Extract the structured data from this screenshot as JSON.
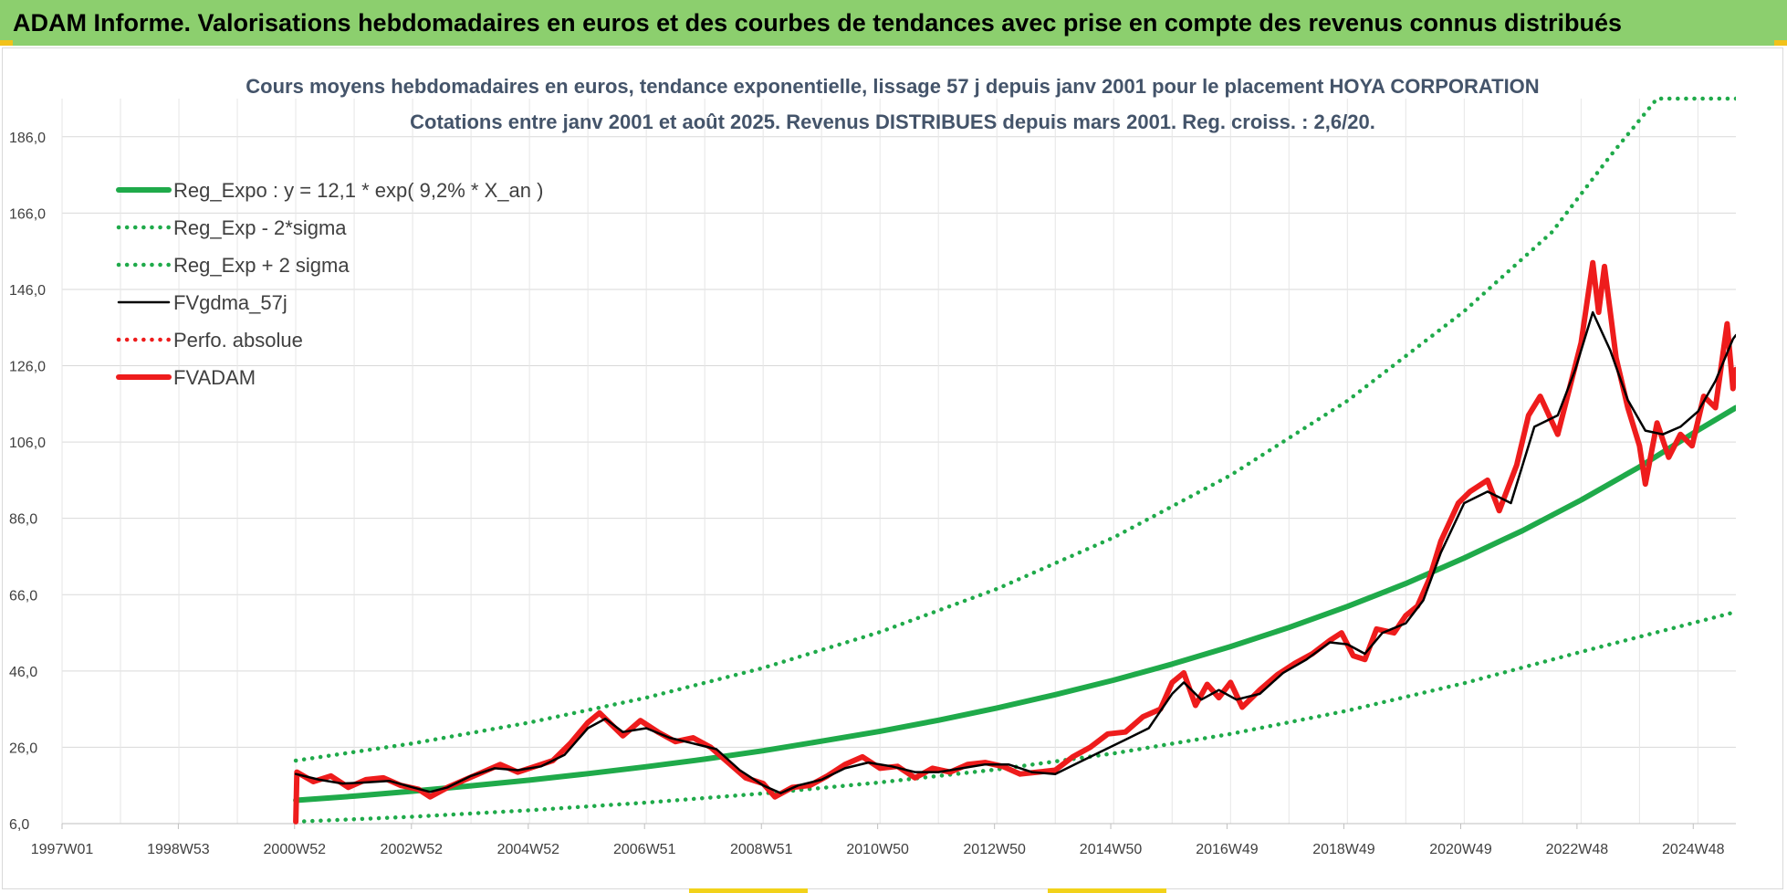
{
  "header": {
    "title": "ADAM Informe. Valorisations hebdomadaires en euros et des courbes de tendances avec prise en compte des revenus connus distribués"
  },
  "colors": {
    "banner": "#8ccf6e",
    "reg_expo": "#1faa4a",
    "fvgdma": "#000000",
    "fvadam": "#ee1c1c",
    "perfo": "#ee1c1c",
    "title_text": "#44546a"
  },
  "chart_data": {
    "type": "line",
    "title": "Cours moyens hebdomadaires en euros, tendance exponentielle, lissage 57 j depuis janv 2001 pour le placement HOYA CORPORATION",
    "subtitle": "Cotations entre janv 2001 et août 2025. Revenus DISTRIBUES depuis mars 2001. Reg. croiss. : 2,6/20.",
    "xlabel": "",
    "ylabel": "",
    "x_range": [
      1997.0,
      2025.65
    ],
    "ylim": [
      6.0,
      196.0
    ],
    "grid": true,
    "legend_position": "top-left",
    "x_ticks": [
      {
        "label": "1997W01",
        "x": 1997.0
      },
      {
        "label": "1998W53",
        "x": 1998.99
      },
      {
        "label": "2000W52",
        "x": 2000.98
      },
      {
        "label": "2002W52",
        "x": 2002.98
      },
      {
        "label": "2004W52",
        "x": 2004.98
      },
      {
        "label": "2006W51",
        "x": 2006.97
      },
      {
        "label": "2008W51",
        "x": 2008.97
      },
      {
        "label": "2010W50",
        "x": 2010.96
      },
      {
        "label": "2012W50",
        "x": 2012.96
      },
      {
        "label": "2014W50",
        "x": 2014.95
      },
      {
        "label": "2016W49",
        "x": 2016.94
      },
      {
        "label": "2018W49",
        "x": 2018.94
      },
      {
        "label": "2020W49",
        "x": 2020.94
      },
      {
        "label": "2022W48",
        "x": 2022.93
      },
      {
        "label": "2024W48",
        "x": 2024.92
      }
    ],
    "y_ticks": [
      "6,0",
      "26,0",
      "46,0",
      "66,0",
      "86,0",
      "106,0",
      "126,0",
      "146,0",
      "166,0",
      "186,0"
    ],
    "y_tick_values": [
      6,
      26,
      46,
      66,
      86,
      106,
      126,
      146,
      166,
      186
    ],
    "series": [
      {
        "name": "Reg_Expo : y = 12,1 * exp( 9,2% *  X_an )",
        "style": "solid-thick",
        "color": "#1faa4a",
        "points": [
          [
            2001.0,
            12.1
          ],
          [
            2002.0,
            13.2
          ],
          [
            2003.0,
            14.5
          ],
          [
            2004.0,
            15.9
          ],
          [
            2005.0,
            17.4
          ],
          [
            2006.0,
            19.1
          ],
          [
            2007.0,
            20.9
          ],
          [
            2008.0,
            22.9
          ],
          [
            2009.0,
            25.1
          ],
          [
            2010.0,
            27.6
          ],
          [
            2011.0,
            30.2
          ],
          [
            2012.0,
            33.1
          ],
          [
            2013.0,
            36.3
          ],
          [
            2014.0,
            39.8
          ],
          [
            2015.0,
            43.6
          ],
          [
            2016.0,
            47.8
          ],
          [
            2017.0,
            52.4
          ],
          [
            2018.0,
            57.4
          ],
          [
            2019.0,
            62.9
          ],
          [
            2020.0,
            68.9
          ],
          [
            2021.0,
            75.6
          ],
          [
            2022.0,
            82.8
          ],
          [
            2023.0,
            90.8
          ],
          [
            2024.0,
            99.5
          ],
          [
            2025.0,
            109.1
          ],
          [
            2025.65,
            115.0
          ]
        ]
      },
      {
        "name": "Reg_Exp - 2*sigma",
        "style": "dotted",
        "color": "#1faa4a",
        "points": [
          [
            2001.0,
            6.5
          ],
          [
            2003.0,
            7.8
          ],
          [
            2005.0,
            9.5
          ],
          [
            2007.0,
            11.5
          ],
          [
            2009.0,
            13.9
          ],
          [
            2011.0,
            16.8
          ],
          [
            2013.0,
            20.2
          ],
          [
            2015.0,
            24.4
          ],
          [
            2017.0,
            29.5
          ],
          [
            2019.0,
            35.6
          ],
          [
            2021.0,
            42.8
          ],
          [
            2023.0,
            51.0
          ],
          [
            2025.0,
            58.9
          ],
          [
            2025.65,
            61.5
          ]
        ]
      },
      {
        "name": "Reg_Exp + 2 sigma",
        "style": "dotted",
        "color": "#1faa4a",
        "points": [
          [
            2001.0,
            22.5
          ],
          [
            2003.0,
            27.0
          ],
          [
            2005.0,
            32.5
          ],
          [
            2007.0,
            39.0
          ],
          [
            2009.0,
            46.8
          ],
          [
            2011.0,
            56.2
          ],
          [
            2013.0,
            67.5
          ],
          [
            2015.0,
            81.0
          ],
          [
            2017.0,
            97.3
          ],
          [
            2019.0,
            116.8
          ],
          [
            2021.0,
            140.3
          ],
          [
            2022.5,
            161.0
          ],
          [
            2023.5,
            181.0
          ],
          [
            2024.3,
            196.0
          ],
          [
            2025.65,
            196.0
          ]
        ]
      },
      {
        "name": "FVgdma_57j",
        "style": "solid",
        "color": "#000000",
        "points": [
          [
            2001.0,
            19.0
          ],
          [
            2001.4,
            17.5
          ],
          [
            2001.8,
            16.5
          ],
          [
            2002.2,
            16.8
          ],
          [
            2002.6,
            17.2
          ],
          [
            2003.0,
            15.5
          ],
          [
            2003.3,
            14.3
          ],
          [
            2003.6,
            15.5
          ],
          [
            2004.0,
            18.5
          ],
          [
            2004.4,
            20.5
          ],
          [
            2004.8,
            20.0
          ],
          [
            2005.2,
            21.0
          ],
          [
            2005.6,
            24.0
          ],
          [
            2006.0,
            31.0
          ],
          [
            2006.3,
            33.5
          ],
          [
            2006.6,
            30.0
          ],
          [
            2007.0,
            31.0
          ],
          [
            2007.4,
            28.5
          ],
          [
            2007.8,
            27.0
          ],
          [
            2008.2,
            25.5
          ],
          [
            2008.6,
            20.0
          ],
          [
            2009.0,
            16.0
          ],
          [
            2009.3,
            14.0
          ],
          [
            2009.6,
            16.0
          ],
          [
            2010.0,
            17.5
          ],
          [
            2010.4,
            20.5
          ],
          [
            2010.8,
            22.0
          ],
          [
            2011.2,
            21.0
          ],
          [
            2011.6,
            19.5
          ],
          [
            2012.0,
            19.5
          ],
          [
            2012.4,
            20.5
          ],
          [
            2012.8,
            21.5
          ],
          [
            2013.2,
            21.5
          ],
          [
            2013.6,
            19.5
          ],
          [
            2014.0,
            19.0
          ],
          [
            2014.4,
            22.0
          ],
          [
            2014.8,
            25.0
          ],
          [
            2015.2,
            28.0
          ],
          [
            2015.6,
            31.0
          ],
          [
            2016.0,
            40.0
          ],
          [
            2016.2,
            43.0
          ],
          [
            2016.5,
            38.5
          ],
          [
            2016.8,
            41.0
          ],
          [
            2017.1,
            38.5
          ],
          [
            2017.5,
            40.0
          ],
          [
            2017.9,
            45.5
          ],
          [
            2018.3,
            49.0
          ],
          [
            2018.7,
            53.5
          ],
          [
            2019.0,
            53.0
          ],
          [
            2019.3,
            50.5
          ],
          [
            2019.6,
            56.0
          ],
          [
            2020.0,
            58.5
          ],
          [
            2020.3,
            64.5
          ],
          [
            2020.6,
            77.0
          ],
          [
            2021.0,
            90.0
          ],
          [
            2021.4,
            93.0
          ],
          [
            2021.8,
            90.0
          ],
          [
            2022.2,
            110.0
          ],
          [
            2022.6,
            113.0
          ],
          [
            2022.9,
            125.0
          ],
          [
            2023.2,
            140.0
          ],
          [
            2023.5,
            130.0
          ],
          [
            2023.8,
            117.0
          ],
          [
            2024.1,
            109.0
          ],
          [
            2024.4,
            108.0
          ],
          [
            2024.7,
            110.0
          ],
          [
            2025.0,
            114.0
          ],
          [
            2025.3,
            122.0
          ],
          [
            2025.6,
            133.0
          ],
          [
            2025.65,
            134.0
          ]
        ]
      },
      {
        "name": "Perfo. absolue",
        "style": "dotted",
        "color": "#ee1c1c",
        "points": []
      },
      {
        "name": "FVADAM",
        "style": "solid-thick",
        "color": "#ee1c1c",
        "points": [
          [
            2001.0,
            6.5
          ],
          [
            2001.02,
            19.5
          ],
          [
            2001.3,
            17.0
          ],
          [
            2001.6,
            18.5
          ],
          [
            2001.9,
            15.5
          ],
          [
            2002.2,
            17.5
          ],
          [
            2002.5,
            18.0
          ],
          [
            2002.8,
            16.0
          ],
          [
            2003.1,
            15.0
          ],
          [
            2003.3,
            13.0
          ],
          [
            2003.6,
            15.5
          ],
          [
            2003.9,
            17.5
          ],
          [
            2004.2,
            19.5
          ],
          [
            2004.5,
            21.5
          ],
          [
            2004.8,
            19.5
          ],
          [
            2005.1,
            21.0
          ],
          [
            2005.4,
            22.5
          ],
          [
            2005.7,
            27.0
          ],
          [
            2006.0,
            32.5
          ],
          [
            2006.2,
            35.0
          ],
          [
            2006.4,
            32.0
          ],
          [
            2006.6,
            29.0
          ],
          [
            2006.9,
            33.0
          ],
          [
            2007.2,
            30.0
          ],
          [
            2007.5,
            27.5
          ],
          [
            2007.8,
            28.5
          ],
          [
            2008.1,
            26.0
          ],
          [
            2008.4,
            22.0
          ],
          [
            2008.7,
            18.0
          ],
          [
            2009.0,
            16.5
          ],
          [
            2009.2,
            13.0
          ],
          [
            2009.5,
            15.5
          ],
          [
            2009.8,
            16.0
          ],
          [
            2010.1,
            18.5
          ],
          [
            2010.4,
            21.5
          ],
          [
            2010.7,
            23.5
          ],
          [
            2011.0,
            20.5
          ],
          [
            2011.3,
            21.0
          ],
          [
            2011.6,
            18.0
          ],
          [
            2011.9,
            20.5
          ],
          [
            2012.2,
            19.5
          ],
          [
            2012.5,
            21.5
          ],
          [
            2012.8,
            22.0
          ],
          [
            2013.1,
            21.0
          ],
          [
            2013.4,
            19.0
          ],
          [
            2013.7,
            19.5
          ],
          [
            2014.0,
            20.0
          ],
          [
            2014.3,
            23.5
          ],
          [
            2014.6,
            26.0
          ],
          [
            2014.9,
            29.5
          ],
          [
            2015.2,
            30.0
          ],
          [
            2015.5,
            34.0
          ],
          [
            2015.8,
            36.0
          ],
          [
            2016.0,
            43.0
          ],
          [
            2016.2,
            45.5
          ],
          [
            2016.4,
            37.0
          ],
          [
            2016.6,
            42.5
          ],
          [
            2016.8,
            39.0
          ],
          [
            2017.0,
            43.0
          ],
          [
            2017.2,
            36.5
          ],
          [
            2017.5,
            41.0
          ],
          [
            2017.8,
            45.0
          ],
          [
            2018.1,
            48.0
          ],
          [
            2018.4,
            50.5
          ],
          [
            2018.7,
            54.0
          ],
          [
            2018.9,
            56.0
          ],
          [
            2019.1,
            50.0
          ],
          [
            2019.3,
            49.0
          ],
          [
            2019.5,
            57.0
          ],
          [
            2019.8,
            56.0
          ],
          [
            2020.0,
            60.5
          ],
          [
            2020.2,
            63.0
          ],
          [
            2020.4,
            70.0
          ],
          [
            2020.6,
            80.0
          ],
          [
            2020.9,
            90.0
          ],
          [
            2021.1,
            93.0
          ],
          [
            2021.4,
            96.0
          ],
          [
            2021.6,
            88.0
          ],
          [
            2021.9,
            100.0
          ],
          [
            2022.1,
            113.0
          ],
          [
            2022.3,
            118.0
          ],
          [
            2022.6,
            108.0
          ],
          [
            2022.8,
            120.0
          ],
          [
            2023.0,
            132.0
          ],
          [
            2023.2,
            153.0
          ],
          [
            2023.3,
            140.0
          ],
          [
            2023.4,
            152.0
          ],
          [
            2023.6,
            128.0
          ],
          [
            2023.8,
            115.0
          ],
          [
            2024.0,
            105.0
          ],
          [
            2024.1,
            95.0
          ],
          [
            2024.3,
            111.0
          ],
          [
            2024.5,
            102.0
          ],
          [
            2024.7,
            108.0
          ],
          [
            2024.9,
            105.0
          ],
          [
            2025.1,
            118.0
          ],
          [
            2025.3,
            115.0
          ],
          [
            2025.5,
            137.0
          ],
          [
            2025.6,
            120.0
          ],
          [
            2025.65,
            125.0
          ]
        ]
      }
    ]
  }
}
